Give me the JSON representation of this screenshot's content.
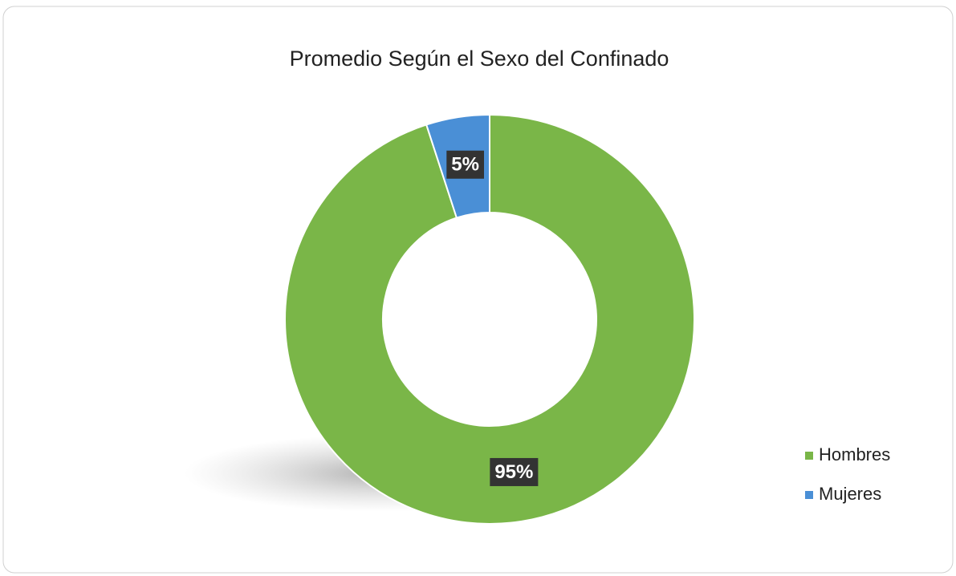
{
  "chart_data": {
    "type": "donut",
    "title": "Promedio Según el Sexo del Confinado",
    "categories": [
      "Hombres",
      "Mujeres"
    ],
    "values": [
      95,
      5
    ],
    "value_labels": [
      "95%",
      "5%"
    ],
    "colors": [
      "#7ab648",
      "#4a8fd6"
    ],
    "legend": "right"
  }
}
